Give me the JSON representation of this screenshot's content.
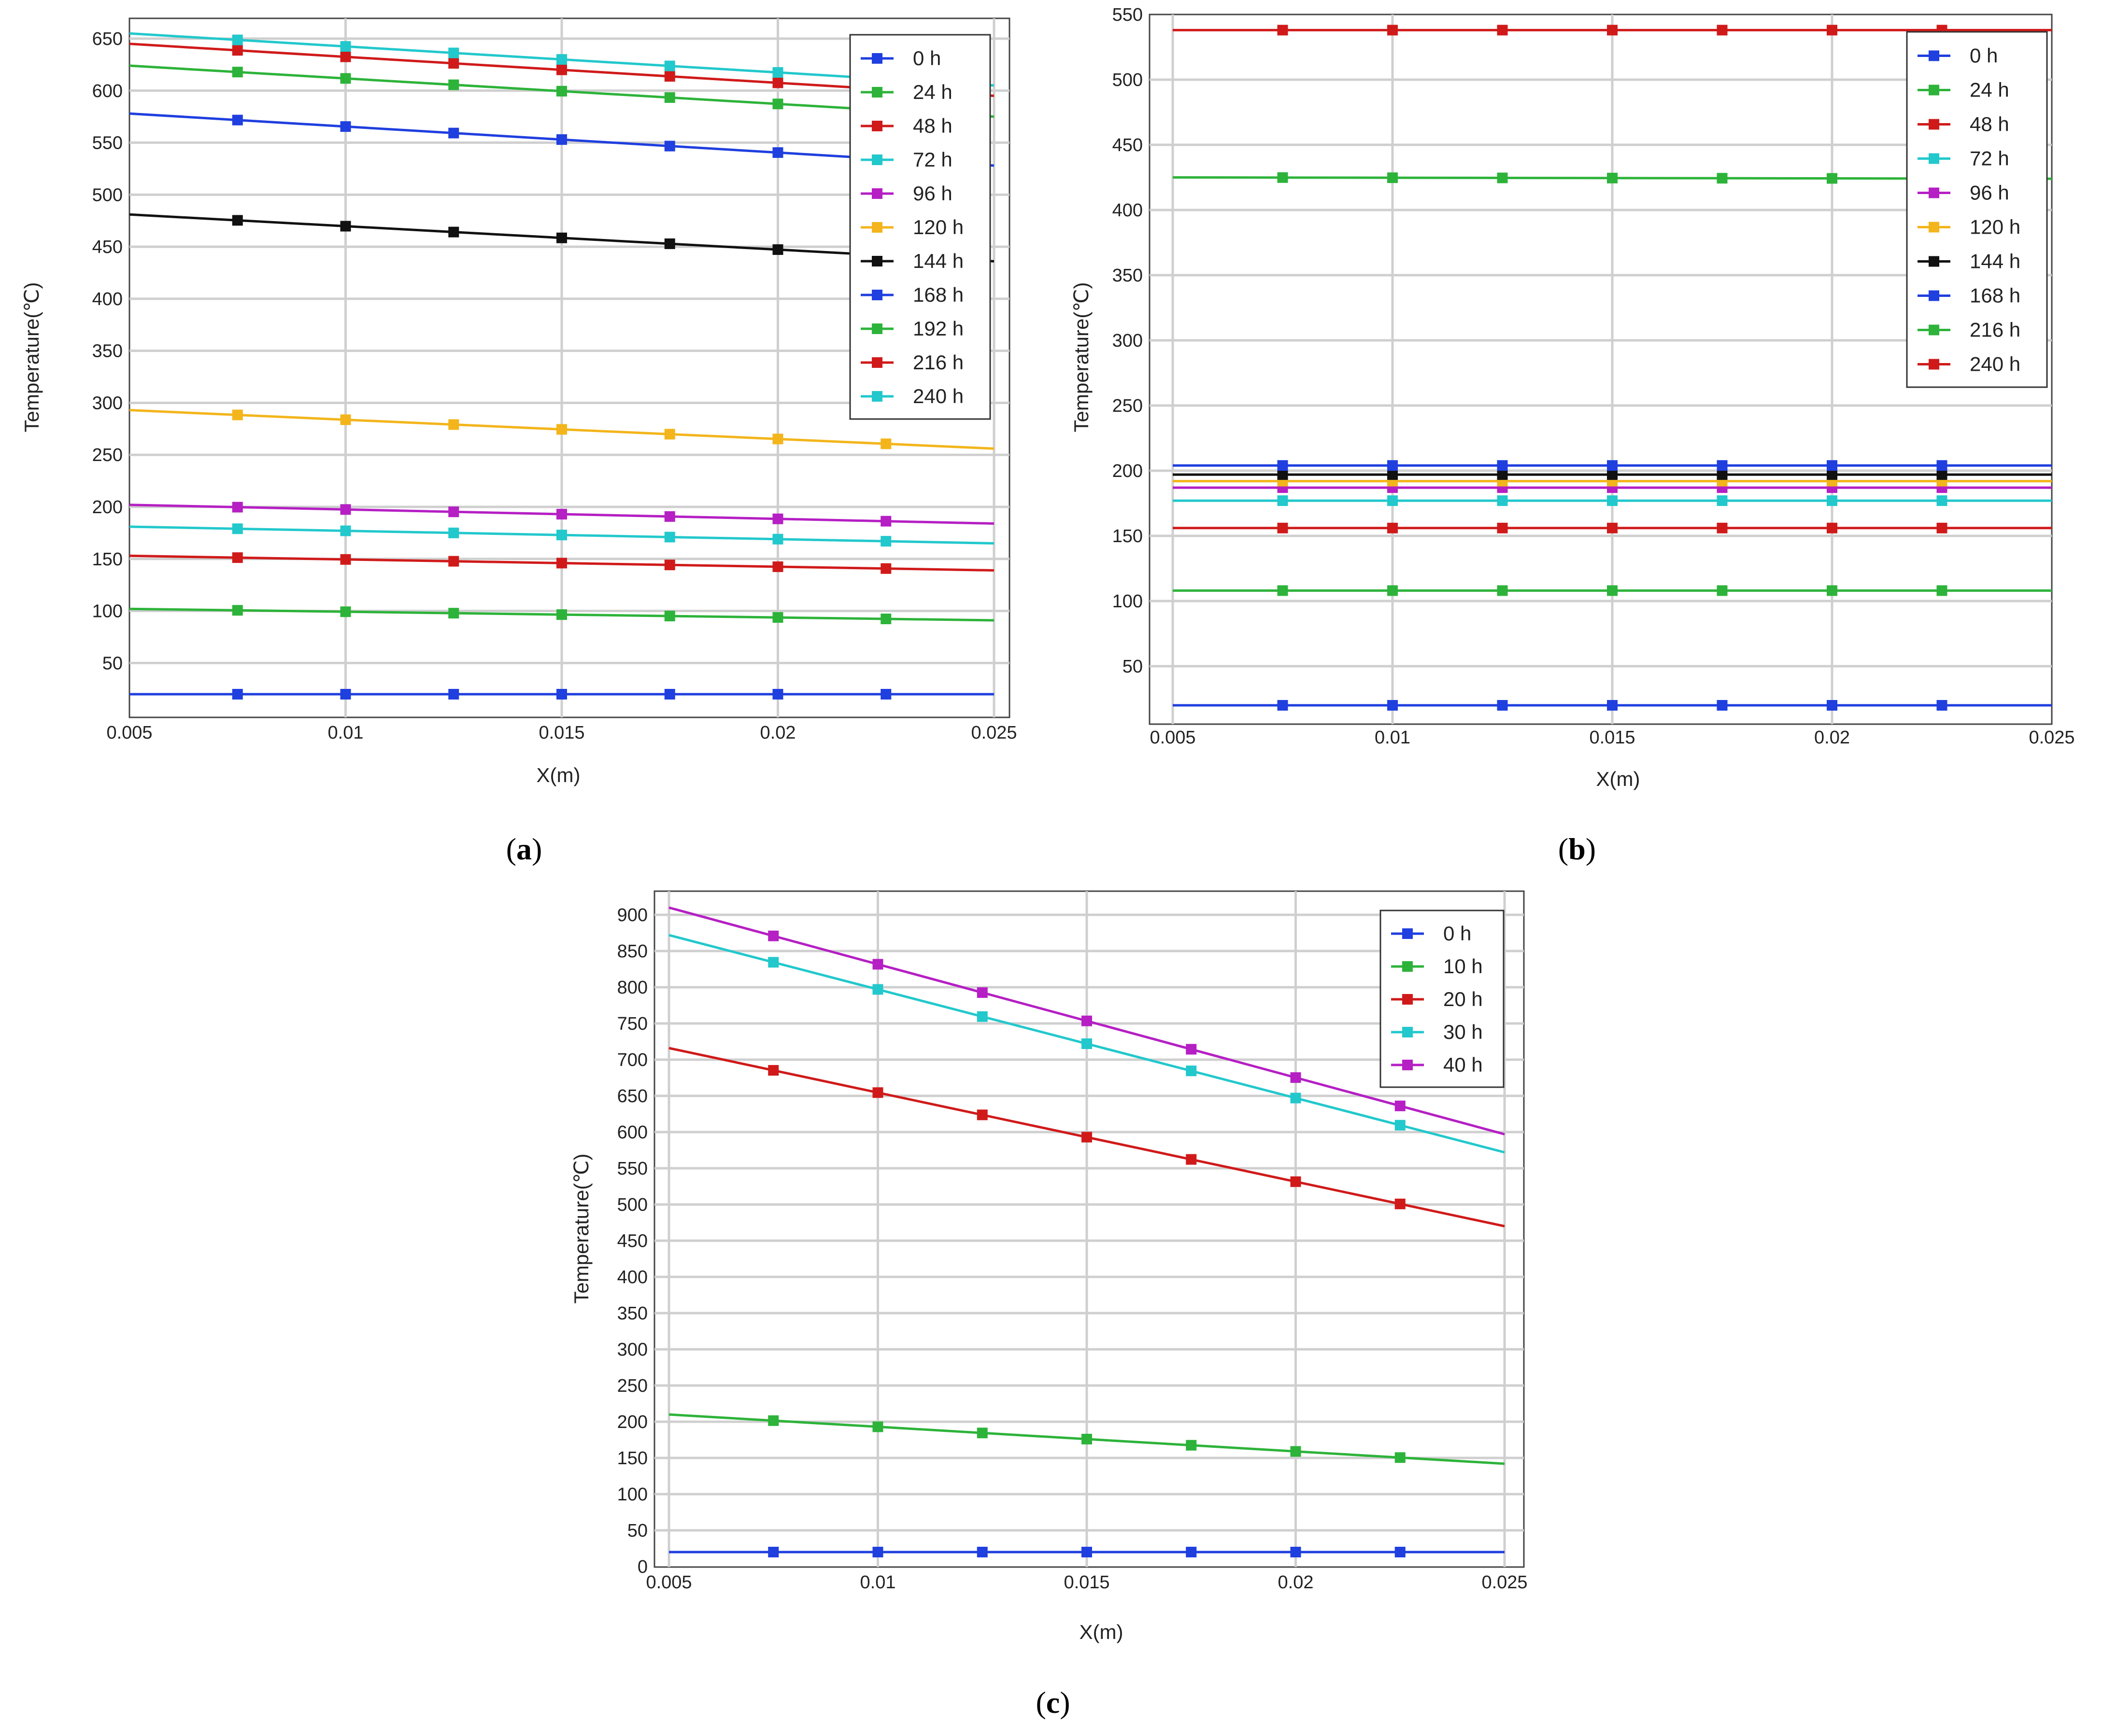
{
  "chart_data": [
    {
      "type": "line",
      "caption": "(a)",
      "caption_letter": "a",
      "title": "",
      "xlabel": "X(m)",
      "ylabel": "Temperature(℃)",
      "xlim": [
        0.004,
        0.025
      ],
      "ylim": [
        10,
        665
      ],
      "xticks": [
        0.005,
        0.01,
        0.015,
        0.02,
        0.025
      ],
      "xtick_labels": [
        "0.005",
        "0.01",
        "0.015",
        "0.02",
        "0.025"
      ],
      "yticks": [
        50,
        100,
        150,
        200,
        250,
        300,
        350,
        400,
        450,
        500,
        550,
        600,
        650
      ],
      "grid": true,
      "legend_position": "top-right",
      "series": [
        {
          "name": "0 h",
          "color": "#1f3fdf",
          "start": 20,
          "end": 20,
          "in_legend": true
        },
        {
          "name": "24 h",
          "color": "#2db33a",
          "start": 102,
          "end": 91,
          "in_legend": true
        },
        {
          "name": "48 h",
          "color": "#d01a1a",
          "start": 153,
          "end": 139,
          "in_legend": true
        },
        {
          "name": "72 h",
          "color": "#22c8cc",
          "start": 181,
          "end": 165,
          "in_legend": true
        },
        {
          "name": "96 h",
          "color": "#b51fc4",
          "start": 202,
          "end": 184,
          "in_legend": true
        },
        {
          "name": "120 h",
          "color": "#f3b51b",
          "start": 293,
          "end": 256,
          "in_legend": true
        },
        {
          "name": "144 h",
          "color": "#111111",
          "start": 481,
          "end": 436,
          "in_legend": true
        },
        {
          "name": "168 h",
          "color": "#1f3fdf",
          "start": 578,
          "end": 528,
          "in_legend": true
        },
        {
          "name": "192 h",
          "color": "#2db33a",
          "start": 624,
          "end": 575,
          "in_legend": true
        },
        {
          "name": "216 h",
          "color": "#d01a1a",
          "start": 645,
          "end": 595,
          "in_legend": true
        },
        {
          "name": "240 h",
          "color": "#22c8cc",
          "start": 655,
          "end": 605,
          "in_legend": true
        }
      ]
    },
    {
      "type": "line",
      "caption": "(b)",
      "caption_letter": "b",
      "title": "",
      "xlabel": "X(m)",
      "ylabel": "Temperature(℃)",
      "xlim": [
        0.004,
        0.025
      ],
      "ylim": [
        10,
        550
      ],
      "xticks": [
        0.005,
        0.01,
        0.015,
        0.02,
        0.025
      ],
      "xtick_labels": [
        "0.005",
        "0.01",
        "0.015",
        "0.02",
        "0.025"
      ],
      "yticks": [
        50,
        100,
        150,
        200,
        250,
        300,
        350,
        400,
        450,
        500,
        550
      ],
      "grid": true,
      "legend_position": "top-right",
      "series": [
        {
          "name": "0 h",
          "color": "#1f3fdf",
          "start": 20,
          "end": 20,
          "in_legend": true
        },
        {
          "name": "24 h",
          "color": "#2db33a",
          "start": 108,
          "end": 108,
          "in_legend": true
        },
        {
          "name": "48 h",
          "color": "#d01a1a",
          "start": 156,
          "end": 156,
          "in_legend": true
        },
        {
          "name": "72 h",
          "color": "#22c8cc",
          "start": 177,
          "end": 177,
          "in_legend": true
        },
        {
          "name": "96 h",
          "color": "#b51fc4",
          "start": 187,
          "end": 187,
          "in_legend": true
        },
        {
          "name": "120 h",
          "color": "#f3b51b",
          "start": 192,
          "end": 192,
          "in_legend": true
        },
        {
          "name": "144 h",
          "color": "#111111",
          "start": 197,
          "end": 197,
          "in_legend": true
        },
        {
          "name": "168 h",
          "color": "#1f3fdf",
          "start": 204,
          "end": 204,
          "in_legend": true
        },
        {
          "name": "216 h",
          "color": "#2db33a",
          "start": 425,
          "end": 424,
          "in_legend": true
        },
        {
          "name": "240 h",
          "color": "#d01a1a",
          "start": 538,
          "end": 538,
          "in_legend": true
        }
      ]
    },
    {
      "type": "line",
      "caption": "(c)",
      "caption_letter": "c",
      "title": "",
      "xlabel": "X(m)",
      "ylabel": "Temperature(℃)",
      "xlim": [
        0.004,
        0.025
      ],
      "ylim": [
        0,
        920
      ],
      "xticks": [
        0.005,
        0.01,
        0.015,
        0.02,
        0.025
      ],
      "xtick_labels": [
        "0.005",
        "0.01",
        "0.015",
        "0.02",
        "0.025"
      ],
      "yticks": [
        0,
        50,
        100,
        150,
        200,
        250,
        300,
        350,
        400,
        450,
        500,
        550,
        600,
        650,
        700,
        750,
        800,
        850,
        900
      ],
      "grid": true,
      "legend_position": "top-right",
      "series": [
        {
          "name": "0 h",
          "color": "#1f3fdf",
          "start": 20,
          "end": 20,
          "in_legend": true
        },
        {
          "name": "10 h",
          "color": "#2db33a",
          "start": 210,
          "end": 142,
          "in_legend": true
        },
        {
          "name": "20 h",
          "color": "#d01a1a",
          "start": 716,
          "end": 470,
          "in_legend": true
        },
        {
          "name": "30 h",
          "color": "#22c8cc",
          "start": 872,
          "end": 572,
          "in_legend": true
        },
        {
          "name": "40 h",
          "color": "#b51fc4",
          "start": 910,
          "end": 597,
          "in_legend": true
        }
      ]
    }
  ]
}
